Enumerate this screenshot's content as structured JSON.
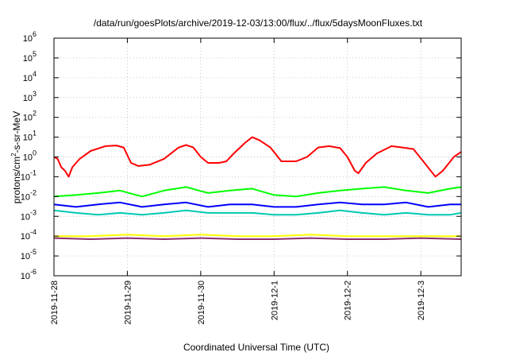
{
  "chart_data": {
    "type": "line",
    "title": "/data/run/goesPlots/archive/2019-12-03/13:00/flux/../flux/5daysMoonFluxes.txt",
    "xlabel": "Coordinated Universal Time (UTC)",
    "ylabel": {
      "base": "protons/cm",
      "sup": "2",
      "rest": "-s-sr-MeV"
    },
    "y_scale": "log",
    "ylim_exponents": [
      -6,
      6
    ],
    "y_tick_exponents": [
      6,
      5,
      4,
      3,
      2,
      1,
      0,
      -1,
      -2,
      -3,
      -4,
      -5,
      -6
    ],
    "y_tick_base": "10",
    "x_tick_labels": [
      "2019-11-28",
      "2019-11-29",
      "2019-11-30",
      "2019-12-1",
      "2019-12-2",
      "2019-12-3"
    ],
    "x_range_days": [
      0,
      5.55
    ],
    "grid": true,
    "series": [
      {
        "color": "#ff0000",
        "values": [
          [
            0,
            1.0
          ],
          [
            0.05,
            0.8
          ],
          [
            0.1,
            0.3
          ],
          [
            0.15,
            0.2
          ],
          [
            0.2,
            0.1
          ],
          [
            0.25,
            0.3
          ],
          [
            0.35,
            0.8
          ],
          [
            0.5,
            2.0
          ],
          [
            0.7,
            3.5
          ],
          [
            0.85,
            3.8
          ],
          [
            0.95,
            3.0
          ],
          [
            1.05,
            0.5
          ],
          [
            1.15,
            0.35
          ],
          [
            1.3,
            0.4
          ],
          [
            1.5,
            0.8
          ],
          [
            1.7,
            3.0
          ],
          [
            1.8,
            4.0
          ],
          [
            1.9,
            3.0
          ],
          [
            2.0,
            1.0
          ],
          [
            2.1,
            0.5
          ],
          [
            2.25,
            0.5
          ],
          [
            2.35,
            0.6
          ],
          [
            2.45,
            1.5
          ],
          [
            2.6,
            5.0
          ],
          [
            2.7,
            10.0
          ],
          [
            2.8,
            7.0
          ],
          [
            2.95,
            3.0
          ],
          [
            3.1,
            0.6
          ],
          [
            3.3,
            0.6
          ],
          [
            3.45,
            1.0
          ],
          [
            3.6,
            3.0
          ],
          [
            3.75,
            3.5
          ],
          [
            3.9,
            2.8
          ],
          [
            4.0,
            1.0
          ],
          [
            4.1,
            0.2
          ],
          [
            4.15,
            0.15
          ],
          [
            4.25,
            0.5
          ],
          [
            4.4,
            1.5
          ],
          [
            4.6,
            3.5
          ],
          [
            4.75,
            3.0
          ],
          [
            4.9,
            2.5
          ],
          [
            5.05,
            0.5
          ],
          [
            5.2,
            0.1
          ],
          [
            5.3,
            0.2
          ],
          [
            5.45,
            1.0
          ],
          [
            5.55,
            1.8
          ]
        ]
      },
      {
        "color": "#00ff00",
        "values": [
          [
            0,
            0.01
          ],
          [
            0.3,
            0.012
          ],
          [
            0.6,
            0.015
          ],
          [
            0.9,
            0.02
          ],
          [
            1.2,
            0.01
          ],
          [
            1.5,
            0.02
          ],
          [
            1.8,
            0.03
          ],
          [
            2.1,
            0.015
          ],
          [
            2.4,
            0.02
          ],
          [
            2.7,
            0.025
          ],
          [
            3.0,
            0.012
          ],
          [
            3.3,
            0.01
          ],
          [
            3.6,
            0.015
          ],
          [
            3.9,
            0.02
          ],
          [
            4.2,
            0.025
          ],
          [
            4.5,
            0.03
          ],
          [
            4.8,
            0.02
          ],
          [
            5.1,
            0.015
          ],
          [
            5.4,
            0.025
          ],
          [
            5.55,
            0.03
          ]
        ]
      },
      {
        "color": "#0000ff",
        "values": [
          [
            0,
            0.004
          ],
          [
            0.3,
            0.003
          ],
          [
            0.6,
            0.004
          ],
          [
            0.9,
            0.005
          ],
          [
            1.2,
            0.003
          ],
          [
            1.5,
            0.004
          ],
          [
            1.8,
            0.005
          ],
          [
            2.1,
            0.003
          ],
          [
            2.4,
            0.004
          ],
          [
            2.7,
            0.004
          ],
          [
            3.0,
            0.003
          ],
          [
            3.3,
            0.003
          ],
          [
            3.6,
            0.004
          ],
          [
            3.9,
            0.005
          ],
          [
            4.2,
            0.004
          ],
          [
            4.5,
            0.004
          ],
          [
            4.8,
            0.005
          ],
          [
            5.1,
            0.003
          ],
          [
            5.4,
            0.004
          ],
          [
            5.55,
            0.004
          ]
        ]
      },
      {
        "color": "#00c8b4",
        "values": [
          [
            0,
            0.002
          ],
          [
            0.3,
            0.0015
          ],
          [
            0.6,
            0.0012
          ],
          [
            0.9,
            0.0015
          ],
          [
            1.2,
            0.0012
          ],
          [
            1.5,
            0.0015
          ],
          [
            1.8,
            0.002
          ],
          [
            2.1,
            0.0015
          ],
          [
            2.4,
            0.0015
          ],
          [
            2.7,
            0.0015
          ],
          [
            3.0,
            0.0012
          ],
          [
            3.3,
            0.0012
          ],
          [
            3.6,
            0.0015
          ],
          [
            3.9,
            0.002
          ],
          [
            4.2,
            0.0015
          ],
          [
            4.5,
            0.0012
          ],
          [
            4.8,
            0.0015
          ],
          [
            5.1,
            0.0012
          ],
          [
            5.4,
            0.0012
          ],
          [
            5.55,
            0.0015
          ]
        ]
      },
      {
        "color": "#ffff00",
        "values": [
          [
            0,
            0.0001
          ],
          [
            0.5,
            0.0001
          ],
          [
            1.0,
            0.00012
          ],
          [
            1.5,
            0.0001
          ],
          [
            2.0,
            0.00012
          ],
          [
            2.5,
            0.0001
          ],
          [
            3.0,
            0.0001
          ],
          [
            3.5,
            0.00012
          ],
          [
            4.0,
            0.0001
          ],
          [
            4.5,
            0.0001
          ],
          [
            5.0,
            0.0001
          ],
          [
            5.55,
            0.0001
          ]
        ]
      },
      {
        "color": "#8b2e6e",
        "values": [
          [
            0,
            8e-05
          ],
          [
            0.5,
            7e-05
          ],
          [
            1.0,
            8e-05
          ],
          [
            1.5,
            7e-05
          ],
          [
            2.0,
            8e-05
          ],
          [
            2.5,
            7e-05
          ],
          [
            3.0,
            7e-05
          ],
          [
            3.5,
            8e-05
          ],
          [
            4.0,
            7e-05
          ],
          [
            4.5,
            7e-05
          ],
          [
            5.0,
            8e-05
          ],
          [
            5.55,
            7e-05
          ]
        ]
      }
    ]
  }
}
